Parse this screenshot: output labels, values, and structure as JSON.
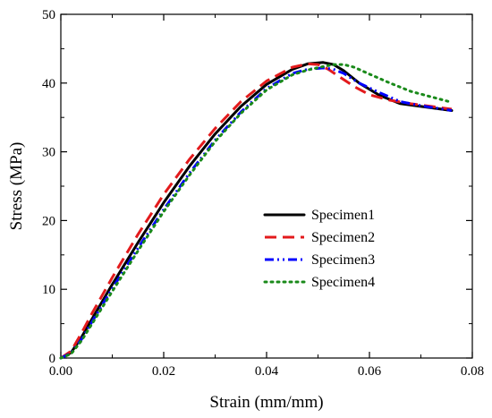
{
  "chart_data": {
    "type": "line",
    "xlabel": "Strain (mm/mm)",
    "ylabel": "Stress (MPa)",
    "xlim": [
      0,
      0.08
    ],
    "ylim": [
      0,
      50
    ],
    "xticks": [
      "0.00",
      "0.02",
      "0.04",
      "0.06",
      "0.08"
    ],
    "yticks": [
      "0",
      "10",
      "20",
      "30",
      "40",
      "50"
    ],
    "grid": false,
    "legend_position": "center-right",
    "series": [
      {
        "name": "Specimen1",
        "color": "#000000",
        "style": "solid",
        "x": [
          0.0,
          0.002,
          0.004,
          0.006,
          0.01,
          0.015,
          0.02,
          0.025,
          0.03,
          0.035,
          0.04,
          0.045,
          0.048,
          0.051,
          0.053,
          0.055,
          0.058,
          0.062,
          0.066,
          0.07,
          0.076
        ],
        "y": [
          0.0,
          0.8,
          3.0,
          5.6,
          10.7,
          16.8,
          22.6,
          27.9,
          32.6,
          36.6,
          39.8,
          42.0,
          42.8,
          43.0,
          42.7,
          41.8,
          40.0,
          38.2,
          37.0,
          36.6,
          36.0
        ]
      },
      {
        "name": "Specimen2",
        "color": "#e31a1c",
        "style": "dashed",
        "x": [
          0.0,
          0.002,
          0.004,
          0.006,
          0.01,
          0.015,
          0.02,
          0.025,
          0.03,
          0.035,
          0.04,
          0.045,
          0.048,
          0.05,
          0.052,
          0.054,
          0.057,
          0.06,
          0.064,
          0.068,
          0.072,
          0.076
        ],
        "y": [
          0.0,
          1.0,
          3.6,
          6.4,
          11.7,
          18.0,
          23.8,
          28.9,
          33.4,
          37.3,
          40.3,
          42.3,
          42.8,
          42.7,
          42.0,
          41.0,
          39.5,
          38.3,
          37.5,
          37.0,
          36.6,
          36.2
        ]
      },
      {
        "name": "Specimen3",
        "color": "#0000ff",
        "style": "dashdotdot",
        "x": [
          0.0,
          0.002,
          0.004,
          0.006,
          0.01,
          0.015,
          0.02,
          0.025,
          0.03,
          0.035,
          0.04,
          0.045,
          0.048,
          0.051,
          0.053,
          0.055,
          0.058,
          0.062,
          0.066,
          0.07,
          0.076
        ],
        "y": [
          0.0,
          0.7,
          2.7,
          5.2,
          10.1,
          16.0,
          21.6,
          26.9,
          31.7,
          35.8,
          39.2,
          41.4,
          42.0,
          42.2,
          42.0,
          41.4,
          40.0,
          38.6,
          37.3,
          36.7,
          36.0
        ]
      },
      {
        "name": "Specimen4",
        "color": "#1a8a1a",
        "style": "dotted",
        "x": [
          0.0,
          0.002,
          0.004,
          0.006,
          0.01,
          0.015,
          0.02,
          0.025,
          0.03,
          0.035,
          0.04,
          0.045,
          0.048,
          0.051,
          0.053,
          0.055,
          0.057,
          0.06,
          0.064,
          0.068,
          0.072,
          0.076
        ],
        "y": [
          0.0,
          0.6,
          2.5,
          4.9,
          9.7,
          15.6,
          21.3,
          26.6,
          31.5,
          35.6,
          39.0,
          41.2,
          41.9,
          42.4,
          42.7,
          42.7,
          42.3,
          41.3,
          40.0,
          38.8,
          38.0,
          37.2
        ]
      }
    ]
  }
}
